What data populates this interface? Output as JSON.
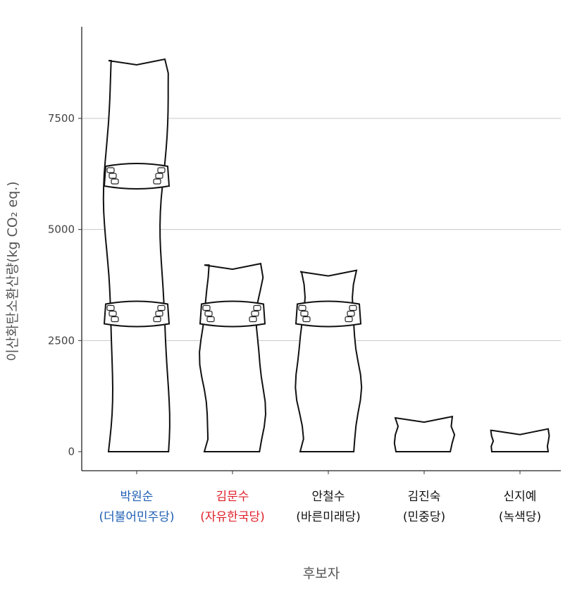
{
  "chart_data": {
    "type": "bar",
    "xlabel": "후보자",
    "ylabel": "이산화탄소환산량(kg CO₂ eq.)",
    "ylim": [
      0,
      9000
    ],
    "yticks": [
      0,
      2500,
      5000,
      7500
    ],
    "grid": true,
    "categories": [
      {
        "name": "박원순",
        "party": "(더불어민주당)",
        "color": "#1f5fb4",
        "value": 8800
      },
      {
        "name": "김문수",
        "party": "(자유한국당)",
        "color": "#e0202a",
        "value": 4200
      },
      {
        "name": "안철수",
        "party": "(바른미래당)",
        "color": "#111111",
        "value": 4050
      },
      {
        "name": "김진숙",
        "party": "(민중당)",
        "color": "#111111",
        "value": 760
      },
      {
        "name": "신지예",
        "party": "(녹색당)",
        "color": "#111111",
        "value": 480
      }
    ],
    "segment_unit": 3100
  }
}
